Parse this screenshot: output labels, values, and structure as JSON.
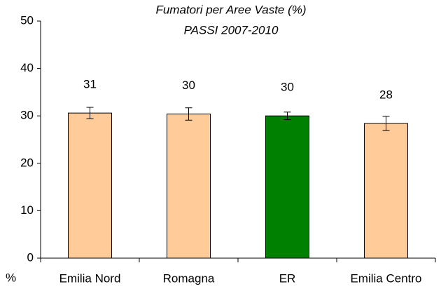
{
  "chart_data": {
    "type": "bar",
    "title": [
      "Fumatori per Aree Vaste (%)",
      "PASSI 2007-2010"
    ],
    "y_label": "%",
    "categories": [
      "Emilia Nord",
      "Romagna",
      "ER",
      "Emilia Centro"
    ],
    "values": [
      30.6,
      30.4,
      30.0,
      28.4
    ],
    "value_labels": [
      "31",
      "30",
      "30",
      "28"
    ],
    "errors": [
      1.2,
      1.3,
      0.8,
      1.5
    ],
    "colors": [
      "#FFCC99",
      "#FFCC99",
      "#008000",
      "#FFCC99"
    ],
    "ylim": [
      0,
      50
    ],
    "yticks": [
      0,
      10,
      20,
      30,
      40,
      50
    ],
    "grid": false
  }
}
